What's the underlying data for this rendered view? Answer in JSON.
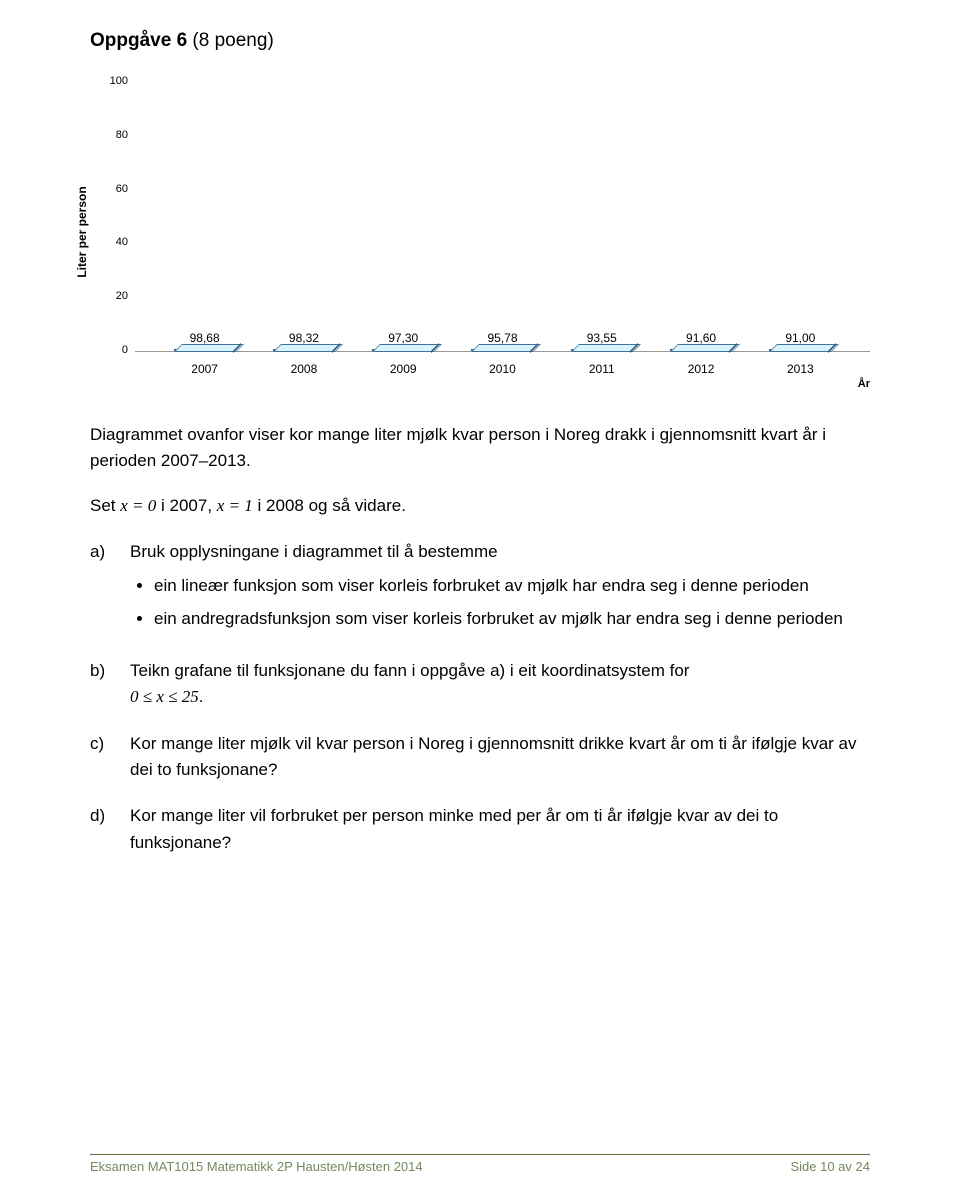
{
  "title": {
    "bold": "Oppgåve 6",
    "regular": " (8 poeng)"
  },
  "chart": {
    "type": "bar",
    "ylabel": "Liter per person",
    "xaxis_label": "År",
    "ylim": [
      0,
      100
    ],
    "ytick_step": 20,
    "yticks": [
      0,
      20,
      40,
      60,
      80,
      100
    ],
    "categories": [
      "2007",
      "2008",
      "2009",
      "2010",
      "2011",
      "2012",
      "2013"
    ],
    "values": [
      98.68,
      98.32,
      97.3,
      95.78,
      93.55,
      91.6,
      91.0
    ],
    "value_labels": [
      "98,68",
      "98,32",
      "97,30",
      "95,78",
      "93,55",
      "91,60",
      "91,00"
    ],
    "bar_fill_top": "#bcd4e6",
    "bar_fill_bottom": "#7fa7c9",
    "bar_border": "#3a6285",
    "label_fontsize": 12,
    "value_fontsize": 12,
    "tick_fontsize": 11,
    "background_color": "#ffffff"
  },
  "intro": {
    "line1": "Diagrammet ovanfor viser kor mange liter mjølk kvar person i Noreg drakk i gjennomsnitt kvart år i perioden 2007–2013.",
    "line2_pre": "Set ",
    "line2_m1": "x = 0",
    "line2_mid": " i 2007, ",
    "line2_m2": "x = 1",
    "line2_post": " i 2008 og så vidare."
  },
  "qA": {
    "label": "a)",
    "lead": "Bruk opplysningane i diagrammet til å bestemme",
    "b1": "ein lineær funksjon som viser korleis forbruket av mjølk har endra seg i denne perioden",
    "b2": "ein andregradsfunksjon som viser korleis forbruket av mjølk har endra seg i denne perioden"
  },
  "qB": {
    "label": "b)",
    "text_pre": "Teikn grafane til funksjonane du fann i oppgåve a) i eit koordinatsystem for ",
    "math": "0 ≤ x ≤ 25",
    "text_post": "."
  },
  "qC": {
    "label": "c)",
    "text": "Kor mange liter mjølk vil kvar person i Noreg i gjennomsnitt drikke kvart år om ti år ifølgje kvar av dei to funksjonane?"
  },
  "qD": {
    "label": "d)",
    "text": "Kor mange liter vil forbruket per person minke med per år om ti år ifølgje kvar av dei to funksjonane?"
  },
  "footer": {
    "left": "Eksamen MAT1015 Matematikk 2P Hausten/Høsten 2014",
    "right": "Side 10 av 24"
  }
}
